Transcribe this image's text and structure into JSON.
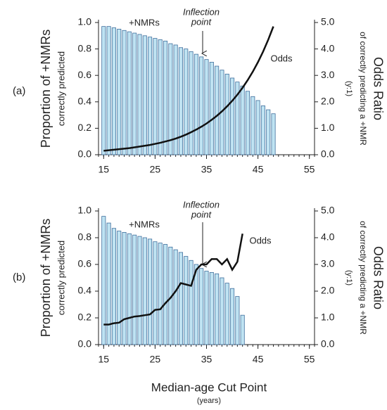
{
  "x_label": "Median-age Cut Point",
  "x_unit": "(years)",
  "chart_data": [
    {
      "type": "bar",
      "panel": "(a)",
      "x": [
        15,
        16,
        17,
        18,
        19,
        20,
        21,
        22,
        23,
        24,
        25,
        26,
        27,
        28,
        29,
        30,
        31,
        32,
        33,
        34,
        35,
        36,
        37,
        38,
        39,
        40,
        41,
        42,
        43,
        44,
        45,
        46,
        47,
        48
      ],
      "series": [
        {
          "name": "+NMRs",
          "color": "#bfe3f2",
          "values": [
            0.97,
            0.97,
            0.96,
            0.95,
            0.94,
            0.93,
            0.92,
            0.91,
            0.9,
            0.89,
            0.88,
            0.87,
            0.86,
            0.84,
            0.83,
            0.81,
            0.8,
            0.78,
            0.76,
            0.74,
            0.72,
            0.7,
            0.67,
            0.64,
            0.61,
            0.58,
            0.55,
            0.52,
            0.48,
            0.44,
            0.41,
            0.37,
            0.34,
            0.31
          ]
        },
        {
          "name": "Odds",
          "color": "#111111",
          "axis": "y2",
          "values": [
            0.15,
            0.17,
            0.19,
            0.21,
            0.23,
            0.25,
            0.28,
            0.31,
            0.34,
            0.37,
            0.41,
            0.45,
            0.5,
            0.55,
            0.61,
            0.68,
            0.76,
            0.85,
            0.95,
            1.06,
            1.18,
            1.32,
            1.47,
            1.64,
            1.83,
            2.04,
            2.27,
            2.53,
            2.82,
            3.14,
            3.5,
            3.9,
            4.35,
            4.85
          ]
        }
      ],
      "annotation": [
        "Inflection",
        "point"
      ],
      "ylabel": [
        "Proportion of +NMRs",
        "correctly predicted"
      ],
      "y2label": [
        "Odds Ratio",
        "of correctly predicting a +NMR",
        "(y:1)"
      ],
      "xlim": [
        14,
        56
      ],
      "xticks": [
        15,
        25,
        35,
        45,
        55
      ],
      "xminor_step": 1,
      "ylim": [
        0,
        1
      ],
      "yticks": [
        {
          "value": 0,
          "label": "0.0"
        },
        0.2,
        0.4,
        0.6,
        0.8,
        {
          "value": 1,
          "label": "1.0"
        }
      ],
      "y2lim": [
        0,
        5
      ],
      "y2ticks": [
        {
          "value": 0,
          "label": "0.0"
        },
        {
          "value": 1,
          "label": "1.0"
        },
        {
          "value": 2,
          "label": "2.0"
        },
        {
          "value": 3,
          "label": "3.0"
        },
        {
          "value": 4,
          "label": "4.0"
        },
        {
          "value": 5,
          "label": "5.0"
        }
      ]
    },
    {
      "type": "bar",
      "panel": "(b)",
      "x": [
        15,
        16,
        17,
        18,
        19,
        20,
        21,
        22,
        23,
        24,
        25,
        26,
        27,
        28,
        29,
        30,
        31,
        32,
        33,
        34,
        35,
        36,
        37,
        38,
        39,
        40,
        41,
        42
      ],
      "series": [
        {
          "name": "+NMRs",
          "color": "#bfe3f2",
          "values": [
            0.96,
            0.91,
            0.87,
            0.85,
            0.84,
            0.83,
            0.82,
            0.81,
            0.8,
            0.79,
            0.77,
            0.76,
            0.75,
            0.73,
            0.71,
            0.69,
            0.66,
            0.63,
            0.6,
            0.57,
            0.55,
            0.54,
            0.53,
            0.5,
            0.46,
            0.42,
            0.36,
            0.22
          ]
        },
        {
          "name": "Odds",
          "color": "#111111",
          "axis": "y2",
          "values": [
            0.75,
            0.75,
            0.8,
            0.82,
            0.95,
            1.0,
            1.05,
            1.07,
            1.1,
            1.13,
            1.3,
            1.32,
            1.55,
            1.75,
            2.0,
            2.3,
            2.25,
            2.2,
            2.8,
            3.0,
            3.0,
            3.2,
            3.2,
            3.0,
            3.2,
            2.8,
            3.1,
            4.15
          ]
        }
      ],
      "annotation": [
        "Inflection",
        "point"
      ],
      "ylabel": [
        "Proportion of +NMRs",
        "correctly predicted"
      ],
      "y2label": [
        "Odds Ratio",
        "of correctly predicting a +NMR",
        "(y:1)"
      ],
      "xlim": [
        14,
        56
      ],
      "xticks": [
        15,
        25,
        35,
        45,
        55
      ],
      "xminor_step": 1,
      "ylim": [
        0,
        1
      ],
      "yticks": [
        {
          "value": 0,
          "label": "0.0"
        },
        0.2,
        0.4,
        0.6,
        0.8,
        {
          "value": 1,
          "label": "1.0"
        }
      ],
      "y2lim": [
        0,
        5
      ],
      "y2ticks": [
        {
          "value": 0,
          "label": "0.0"
        },
        {
          "value": 1,
          "label": "1.0"
        },
        {
          "value": 2,
          "label": "2.0"
        },
        {
          "value": 3,
          "label": "3.0"
        },
        {
          "value": 4,
          "label": "4.0"
        },
        {
          "value": 5,
          "label": "5.0"
        }
      ]
    }
  ]
}
